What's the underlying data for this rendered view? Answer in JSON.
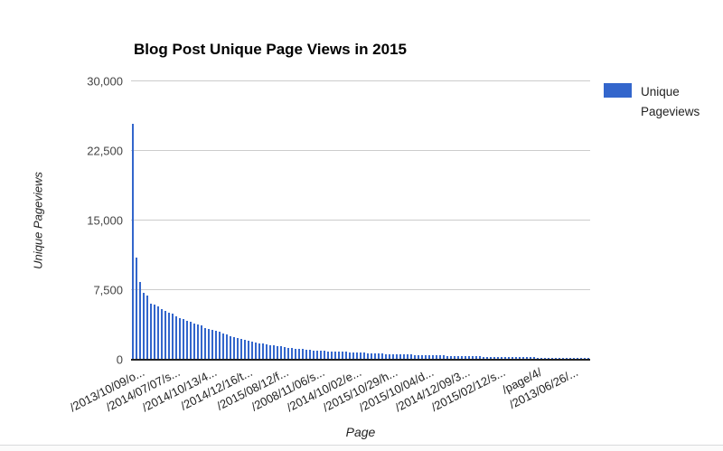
{
  "chart_data": {
    "type": "bar",
    "title": "Blog Post Unique Page Views in 2015",
    "xlabel": "Page",
    "ylabel": "Unique Pageviews",
    "legend": {
      "position": "top-right",
      "entries": [
        {
          "label": "Unique Pageviews",
          "color": "#3366cc"
        }
      ]
    },
    "ylim": [
      0,
      30000
    ],
    "grid": true,
    "colors": {
      "bar": "#3366cc",
      "gridline": "#cccccc",
      "axis_line": "#222222",
      "tick_text": "#444444",
      "label_text": "#222222"
    },
    "yticks": [
      {
        "value": 0,
        "label": "0"
      },
      {
        "value": 7500,
        "label": "7,500"
      },
      {
        "value": 15000,
        "label": "15,000"
      },
      {
        "value": 22500,
        "label": "22,500"
      },
      {
        "value": 30000,
        "label": "30,000"
      }
    ],
    "x_ticks": [
      {
        "bar_index": 0,
        "label": "/2013/10/09/o..."
      },
      {
        "bar_index": 10,
        "label": "/2014/07/07/s..."
      },
      {
        "bar_index": 20,
        "label": "/2014/10/13/4..."
      },
      {
        "bar_index": 30,
        "label": "/2014/12/16/t..."
      },
      {
        "bar_index": 40,
        "label": "/2015/08/12/f..."
      },
      {
        "bar_index": 50,
        "label": "/2008/11/06/s..."
      },
      {
        "bar_index": 60,
        "label": "/2014/10/02/e..."
      },
      {
        "bar_index": 70,
        "label": "/2015/10/29/h..."
      },
      {
        "bar_index": 80,
        "label": "/2015/10/04/d..."
      },
      {
        "bar_index": 90,
        "label": "/2014/12/09/3..."
      },
      {
        "bar_index": 100,
        "label": "/2015/02/12/s..."
      },
      {
        "bar_index": 110,
        "label": "/page/4/"
      },
      {
        "bar_index": 120,
        "label": "/2013/06/26/..."
      }
    ],
    "series_name": "Unique Pageviews",
    "values": [
      25300,
      10900,
      8250,
      7100,
      6800,
      5950,
      5850,
      5650,
      5350,
      5150,
      4950,
      4850,
      4600,
      4400,
      4250,
      4100,
      3950,
      3800,
      3700,
      3600,
      3350,
      3200,
      3100,
      3000,
      2900,
      2750,
      2600,
      2450,
      2300,
      2200,
      2100,
      2000,
      1940,
      1850,
      1780,
      1700,
      1630,
      1560,
      1500,
      1440,
      1380,
      1320,
      1260,
      1210,
      1160,
      1110,
      1070,
      1030,
      990,
      950,
      920,
      890,
      860,
      840,
      820,
      800,
      790,
      780,
      760,
      740,
      720,
      700,
      680,
      660,
      640,
      620,
      600,
      580,
      560,
      540,
      520,
      500,
      490,
      480,
      470,
      460,
      450,
      440,
      430,
      420,
      410,
      400,
      390,
      380,
      370,
      360,
      350,
      340,
      330,
      320,
      310,
      300,
      290,
      280,
      270,
      260,
      250,
      240,
      230,
      220,
      210,
      200,
      195,
      190,
      185,
      180,
      175,
      170,
      165,
      160,
      155,
      150,
      145,
      140,
      135,
      130,
      125,
      120,
      115,
      110,
      105,
      100,
      95,
      90,
      85,
      80,
      75
    ]
  }
}
